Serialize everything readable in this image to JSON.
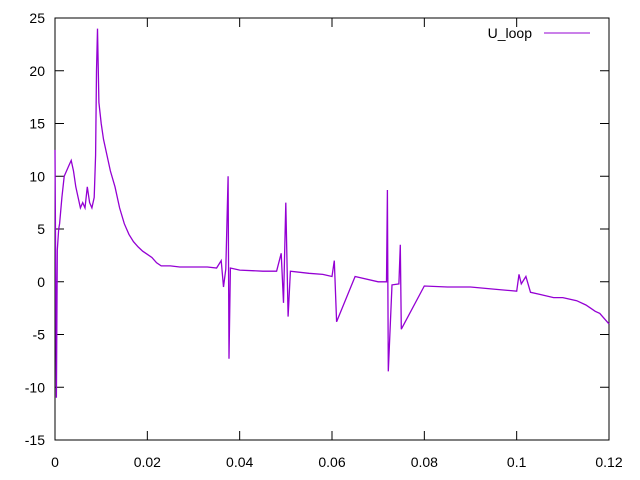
{
  "chart_data": {
    "type": "line",
    "title": "",
    "xlabel": "",
    "ylabel": "",
    "xlim": [
      0,
      0.12
    ],
    "ylim": [
      -15,
      25
    ],
    "xticks": [
      0,
      0.02,
      0.04,
      0.06,
      0.08,
      0.1,
      0.12
    ],
    "xtick_labels": [
      "0",
      "0.02",
      "0.04",
      "0.06",
      "0.08",
      "0.1",
      "0.12"
    ],
    "yticks": [
      -15,
      -10,
      -5,
      0,
      5,
      10,
      15,
      20,
      25
    ],
    "ytick_labels": [
      "-15",
      "-10",
      "-5",
      "0",
      "5",
      "10",
      "15",
      "20",
      "25"
    ],
    "grid": false,
    "legend": {
      "position": "top-right"
    },
    "series": [
      {
        "name": "U_loop",
        "color": "#9400d3",
        "x": [
          0,
          0.0003,
          0.0005,
          0.0008,
          0.001,
          0.0015,
          0.002,
          0.003,
          0.0035,
          0.004,
          0.0045,
          0.005,
          0.0055,
          0.006,
          0.0065,
          0.007,
          0.0075,
          0.008,
          0.0085,
          0.0088,
          0.009,
          0.0092,
          0.0095,
          0.01,
          0.0105,
          0.011,
          0.012,
          0.013,
          0.014,
          0.015,
          0.016,
          0.017,
          0.018,
          0.019,
          0.02,
          0.021,
          0.022,
          0.023,
          0.025,
          0.027,
          0.03,
          0.033,
          0.035,
          0.036,
          0.0365,
          0.037,
          0.0375,
          0.0377,
          0.038,
          0.04,
          0.045,
          0.048,
          0.049,
          0.0495,
          0.05,
          0.0505,
          0.051,
          0.055,
          0.058,
          0.06,
          0.0605,
          0.061,
          0.065,
          0.07,
          0.0718,
          0.072,
          0.0722,
          0.073,
          0.0745,
          0.0748,
          0.075,
          0.08,
          0.085,
          0.09,
          0.095,
          0.1,
          0.1005,
          0.101,
          0.102,
          0.103,
          0.105,
          0.108,
          0.11,
          0.113,
          0.115,
          0.116,
          0.117,
          0.118,
          0.119,
          0.12
        ],
        "y": [
          12.5,
          -11,
          3,
          5,
          5.5,
          8,
          10,
          11,
          11.5,
          10.5,
          9,
          8,
          7,
          7.5,
          7,
          9,
          7.5,
          7,
          8,
          12,
          20,
          24,
          17,
          15,
          13.5,
          12.5,
          10.5,
          9,
          7,
          5.5,
          4.5,
          3.8,
          3.3,
          2.9,
          2.6,
          2.3,
          1.8,
          1.5,
          1.5,
          1.4,
          1.4,
          1.4,
          1.3,
          2,
          -0.5,
          1.2,
          10,
          -7.3,
          1.3,
          1.1,
          1.0,
          1.0,
          2.7,
          -2,
          7.5,
          -3.3,
          1.0,
          0.8,
          0.7,
          0.5,
          2,
          -3.8,
          0.5,
          0.0,
          0.0,
          8.7,
          -8.5,
          -0.3,
          -0.2,
          3.5,
          -4.5,
          -0.4,
          -0.5,
          -0.5,
          -0.7,
          -0.9,
          0.7,
          -0.2,
          0.5,
          -1.0,
          -1.2,
          -1.5,
          -1.5,
          -1.8,
          -2.2,
          -2.5,
          -2.8,
          -3.0,
          -3.5,
          -4.0
        ]
      }
    ]
  }
}
